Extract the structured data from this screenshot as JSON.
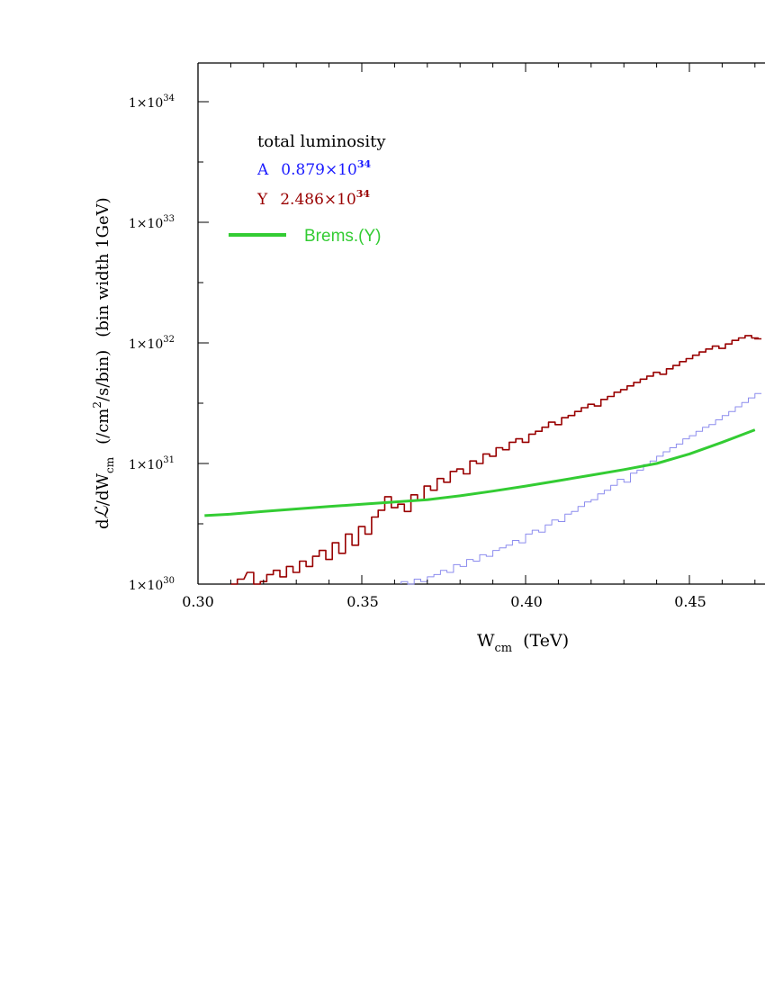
{
  "chart_data": {
    "type": "line",
    "xlim": [
      0.3,
      0.47
    ],
    "ylim": [
      1e+30,
      2e+34
    ],
    "y_scale": "log",
    "grid": false,
    "x_ticks": [
      {
        "value": 0.3,
        "label": "0.30"
      },
      {
        "value": 0.35,
        "label": "0.35"
      },
      {
        "value": 0.4,
        "label": "0.40"
      },
      {
        "value": 0.45,
        "label": "0.45"
      }
    ],
    "y_ticks": [
      {
        "value": 1e+30,
        "mantissa": "1×10",
        "exp": "30"
      },
      {
        "value": 1e+31,
        "mantissa": "1×10",
        "exp": "31"
      },
      {
        "value": 1e+32,
        "mantissa": "1×10",
        "exp": "32"
      },
      {
        "value": 1e+33,
        "mantissa": "1×10",
        "exp": "33"
      },
      {
        "value": 1e+34,
        "mantissa": "1×10",
        "exp": "34"
      }
    ],
    "xlabel": {
      "main": "W",
      "sub": "cm",
      "unit": "(TeV)"
    },
    "ylabel": {
      "d": "d",
      "script_l": "ℒ",
      "slash_dw": "/dW",
      "sub": "cm",
      "unit_a": "(/cm",
      "unit_exp": "2",
      "unit_b": "/s/bin)",
      "bin": "(bin width 1GeV)"
    },
    "legend": {
      "title": "total luminosity",
      "placement": "top-left",
      "entries": [
        {
          "key": "A",
          "mantissa": "0.879×10",
          "exp": "34",
          "color": "#1a1aff"
        },
        {
          "key": "Y",
          "mantissa": "2.486×10",
          "exp": "34",
          "color": "#990000"
        },
        {
          "key": "Brems.(Y)",
          "color": "#33cc33"
        }
      ]
    },
    "series": [
      {
        "key": "A",
        "style": "step",
        "color": "#8c8cee",
        "x": [
          0.363,
          0.365,
          0.367,
          0.369,
          0.371,
          0.373,
          0.375,
          0.377,
          0.379,
          0.381,
          0.383,
          0.385,
          0.387,
          0.389,
          0.391,
          0.393,
          0.395,
          0.397,
          0.399,
          0.401,
          0.403,
          0.405,
          0.407,
          0.409,
          0.411,
          0.413,
          0.415,
          0.417,
          0.419,
          0.421,
          0.423,
          0.425,
          0.427,
          0.429,
          0.431,
          0.433,
          0.435,
          0.437,
          0.439,
          0.441,
          0.443,
          0.445,
          0.447,
          0.449,
          0.451,
          0.453,
          0.455,
          0.457,
          0.459,
          0.461,
          0.463,
          0.465,
          0.467,
          0.469,
          0.471
        ],
        "y": [
          1.05e+30,
          1e+30,
          1.1e+30,
          1.05e+30,
          1.15e+30,
          1.2e+30,
          1.3e+30,
          1.25e+30,
          1.45e+30,
          1.4e+30,
          1.6e+30,
          1.55e+30,
          1.75e+30,
          1.7e+30,
          1.9e+30,
          2e+30,
          2.1e+30,
          2.3e+30,
          2.2e+30,
          2.6e+30,
          2.8e+30,
          2.7e+30,
          3.1e+30,
          3.4e+30,
          3.3e+30,
          3.8e+30,
          4e+30,
          4.4e+30,
          4.8e+30,
          5e+30,
          5.6e+30,
          6e+30,
          6.6e+30,
          7.4e+30,
          7e+30,
          8.3e+30,
          8.8e+30,
          9.8e+30,
          1.05e+31,
          1.15e+31,
          1.25e+31,
          1.35e+31,
          1.45e+31,
          1.6e+31,
          1.7e+31,
          1.85e+31,
          2e+31,
          2.1e+31,
          2.3e+31,
          2.5e+31,
          2.7e+31,
          2.95e+31,
          3.2e+31,
          3.5e+31,
          3.8e+31
        ]
      },
      {
        "key": "Y",
        "style": "step",
        "color": "#990000",
        "x": [
          0.311,
          0.313,
          0.316,
          0.318,
          0.32,
          0.322,
          0.324,
          0.326,
          0.328,
          0.33,
          0.332,
          0.334,
          0.336,
          0.338,
          0.34,
          0.342,
          0.344,
          0.346,
          0.348,
          0.35,
          0.352,
          0.354,
          0.356,
          0.358,
          0.36,
          0.362,
          0.364,
          0.366,
          0.368,
          0.37,
          0.372,
          0.374,
          0.376,
          0.378,
          0.38,
          0.382,
          0.384,
          0.386,
          0.388,
          0.39,
          0.392,
          0.394,
          0.396,
          0.398,
          0.4,
          0.402,
          0.404,
          0.406,
          0.408,
          0.41,
          0.412,
          0.414,
          0.416,
          0.418,
          0.42,
          0.422,
          0.424,
          0.426,
          0.428,
          0.43,
          0.432,
          0.434,
          0.436,
          0.438,
          0.44,
          0.442,
          0.444,
          0.446,
          0.448,
          0.45,
          0.452,
          0.454,
          0.456,
          0.458,
          0.46,
          0.462,
          0.464,
          0.466,
          0.468,
          0.47,
          0.471
        ],
        "y": [
          1e+30,
          1.1e+30,
          1.25e+30,
          1e+30,
          1.05e+30,
          1.2e+30,
          1.3e+30,
          1.15e+30,
          1.4e+30,
          1.25e+30,
          1.55e+30,
          1.4e+30,
          1.7e+30,
          1.9e+30,
          1.6e+30,
          2.2e+30,
          1.8e+30,
          2.6e+30,
          2.1e+30,
          3e+30,
          2.6e+30,
          3.6e+30,
          4.1e+30,
          5.3e+30,
          4.3e+30,
          4.6e+30,
          4e+30,
          5.5e+30,
          5e+30,
          6.5e+30,
          6e+30,
          7.5e+30,
          7e+30,
          8.6e+30,
          9e+30,
          8.2e+30,
          1.05e+31,
          1e+31,
          1.2e+31,
          1.15e+31,
          1.35e+31,
          1.3e+31,
          1.5e+31,
          1.6e+31,
          1.5e+31,
          1.75e+31,
          1.85e+31,
          2e+31,
          2.2e+31,
          2.1e+31,
          2.4e+31,
          2.5e+31,
          2.7e+31,
          2.9e+31,
          3.1e+31,
          3e+31,
          3.4e+31,
          3.6e+31,
          3.9e+31,
          4.1e+31,
          4.4e+31,
          4.7e+31,
          5e+31,
          5.3e+31,
          5.7e+31,
          5.5e+31,
          6.1e+31,
          6.5e+31,
          7e+31,
          7.4e+31,
          7.9e+31,
          8.4e+31,
          8.9e+31,
          9.4e+31,
          9e+31,
          9.8e+31,
          1.05e+32,
          1.1e+32,
          1.15e+32,
          1.1e+32,
          1.08e+32
        ]
      },
      {
        "key": "Brems.(Y)",
        "style": "smooth",
        "color": "#33cc33",
        "x": [
          0.302,
          0.31,
          0.32,
          0.33,
          0.34,
          0.35,
          0.36,
          0.37,
          0.38,
          0.39,
          0.4,
          0.41,
          0.42,
          0.43,
          0.44,
          0.45,
          0.46,
          0.47
        ],
        "y": [
          3.7e+30,
          3.8e+30,
          4e+30,
          4.2e+30,
          4.4e+30,
          4.6e+30,
          4.8e+30,
          5e+30,
          5.4e+30,
          5.9e+30,
          6.5e+30,
          7.2e+30,
          8e+30,
          8.9e+30,
          1e+31,
          1.2e+31,
          1.5e+31,
          1.9e+31
        ]
      }
    ]
  }
}
